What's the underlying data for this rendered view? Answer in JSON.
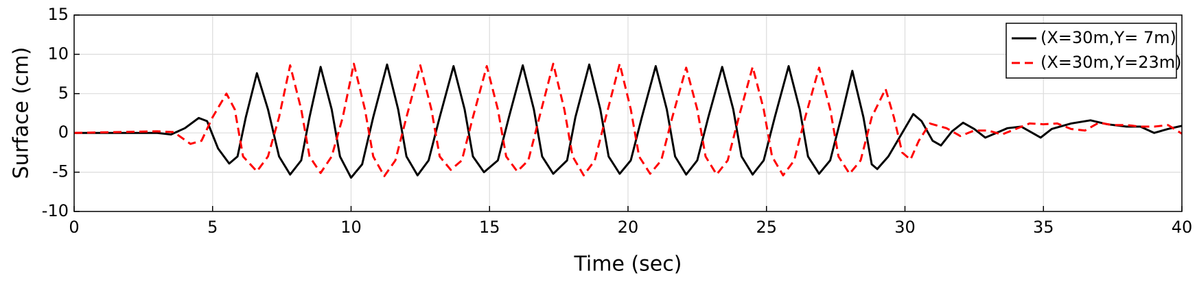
{
  "chart_data": {
    "type": "line",
    "xlabel": "Time (sec)",
    "ylabel": "Surface (cm)",
    "xlim": [
      0,
      40
    ],
    "xticks": [
      0,
      5,
      10,
      15,
      20,
      25,
      30,
      35,
      40
    ],
    "ylim": [
      -10,
      15
    ],
    "yticks": [
      -10,
      -5,
      0,
      5,
      10,
      15
    ],
    "grid": true,
    "legend": "upper right",
    "series": [
      {
        "name": "(X=30m,Y= 7m)",
        "color": "#000000",
        "dash": "solid",
        "x": [
          0,
          3,
          3.5,
          4,
          4.5,
          4.8,
          5.2,
          5.6,
          5.9,
          6.2,
          6.6,
          7,
          7.4,
          7.8,
          8.2,
          8.5,
          8.9,
          9.3,
          9.6,
          10,
          10.4,
          10.8,
          11.3,
          11.7,
          12,
          12.4,
          12.8,
          13.2,
          13.7,
          14.1,
          14.4,
          14.8,
          15.3,
          15.7,
          16.2,
          16.6,
          16.9,
          17.3,
          17.8,
          18.1,
          18.6,
          19,
          19.3,
          19.7,
          20.1,
          20.5,
          21,
          21.4,
          21.7,
          22.1,
          22.5,
          22.9,
          23.4,
          23.8,
          24.1,
          24.5,
          24.9,
          25.3,
          25.8,
          26.2,
          26.5,
          26.9,
          27.3,
          27.7,
          28.1,
          28.5,
          28.8,
          29,
          29.4,
          29.9,
          30.3,
          30.6,
          31,
          31.3,
          31.7,
          32.1,
          32.5,
          32.9,
          33.3,
          33.7,
          34.2,
          34.6,
          34.9,
          35.3,
          36,
          36.7,
          37.3,
          38,
          38.5,
          39,
          39.5,
          40
        ],
        "values": [
          0,
          0,
          -0.2,
          0.6,
          1.9,
          1.5,
          -2,
          -3.9,
          -3,
          2,
          7.6,
          3,
          -3,
          -5.3,
          -3.5,
          2,
          8.4,
          3,
          -3,
          -5.7,
          -4,
          2,
          8.7,
          3,
          -3,
          -5.4,
          -3.5,
          2,
          8.5,
          3,
          -3,
          -5,
          -3.5,
          2,
          8.6,
          3,
          -3,
          -5.2,
          -3.5,
          2,
          8.7,
          3,
          -3,
          -5.2,
          -3.5,
          2,
          8.5,
          3,
          -3,
          -5.3,
          -3.5,
          2,
          8.4,
          3,
          -3,
          -5.3,
          -3.5,
          2,
          8.5,
          3,
          -3,
          -5.2,
          -3.5,
          2,
          7.9,
          2,
          -4,
          -4.6,
          -3,
          0,
          2.4,
          1.5,
          -1,
          -1.6,
          0.2,
          1.3,
          0.5,
          -0.6,
          0,
          0.6,
          0.8,
          0,
          -0.6,
          0.5,
          1.2,
          1.6,
          1.1,
          0.8,
          0.8,
          0,
          0.5,
          0.9
        ]
      },
      {
        "name": "(X=30m,Y=23m)",
        "color": "#ff0000",
        "dash": "dashed",
        "x": [
          0,
          3,
          3.6,
          4.2,
          4.6,
          5,
          5.5,
          5.8,
          6.1,
          6.6,
          7,
          7.4,
          7.8,
          8.2,
          8.5,
          8.9,
          9.3,
          9.7,
          10.1,
          10.5,
          10.8,
          11.2,
          11.6,
          12,
          12.5,
          12.9,
          13.2,
          13.6,
          14,
          14.4,
          14.9,
          15.3,
          15.6,
          16,
          16.4,
          16.8,
          17.3,
          17.7,
          18,
          18.4,
          18.8,
          19.2,
          19.7,
          20.1,
          20.4,
          20.8,
          21.2,
          21.6,
          22.1,
          22.5,
          22.8,
          23.2,
          23.6,
          24,
          24.5,
          24.9,
          25.2,
          25.6,
          26,
          26.4,
          26.9,
          27.3,
          27.6,
          28,
          28.4,
          28.8,
          29.3,
          29.6,
          29.9,
          30.2,
          30.5,
          30.9,
          31.5,
          32,
          32.5,
          33,
          33.5,
          34,
          34.5,
          35,
          35.5,
          36,
          36.5,
          37,
          37.5,
          38,
          38.5,
          39,
          39.5,
          40
        ],
        "values": [
          0,
          0.2,
          0.1,
          -1.4,
          -1,
          2,
          5,
          3,
          -3,
          -4.9,
          -3,
          2,
          8.6,
          3,
          -3,
          -5.1,
          -3,
          2,
          8.8,
          3,
          -3,
          -5.5,
          -3.5,
          2,
          8.6,
          3,
          -3,
          -4.7,
          -3.5,
          2,
          8.5,
          3,
          -3,
          -4.9,
          -3.5,
          2,
          8.8,
          3,
          -3,
          -5.4,
          -3.5,
          2,
          8.8,
          3,
          -3,
          -5.2,
          -3.5,
          2,
          8.3,
          3,
          -3,
          -5.3,
          -3.5,
          2,
          8.4,
          3,
          -3,
          -5.4,
          -3.5,
          2,
          8.3,
          3,
          -3,
          -5.2,
          -3.5,
          2,
          5.6,
          2,
          -2.5,
          -3.4,
          -1,
          1.2,
          0.6,
          -0.4,
          0.3,
          0.3,
          -0.2,
          0.5,
          1.2,
          1.1,
          1.2,
          0.5,
          0.3,
          1.3,
          1,
          1,
          0.8,
          0.8,
          1,
          -0.1
        ]
      }
    ]
  }
}
